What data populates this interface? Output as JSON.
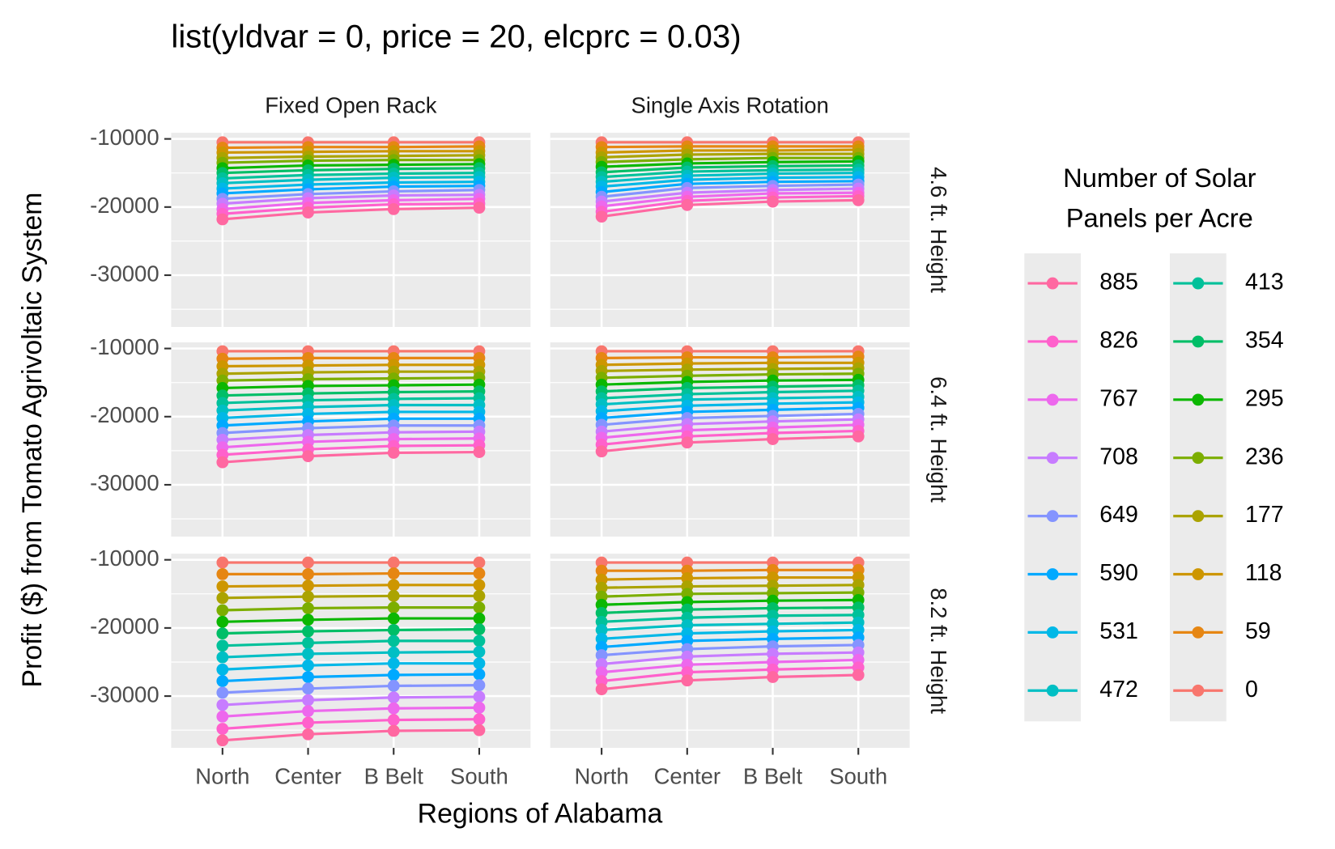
{
  "chart_data": {
    "type": "line",
    "title": "list(yldvar = 0, price = 20, elcprc = 0.03)",
    "x_label": "Regions of Alabama",
    "y_label": "Profit ($) from Tomato Agrivoltaic System",
    "legend_title": [
      "Number of Solar",
      "Panels per Acre"
    ],
    "legend_columns": 2,
    "categories": [
      "North",
      "Center",
      "B Belt",
      "South"
    ],
    "columns": [
      "Fixed Open Rack",
      "Single Axis Rotation"
    ],
    "ylim": [
      -37600,
      -9100
    ],
    "yticks": [
      -30000,
      -20000,
      -10000
    ],
    "minor_yticks": [
      -35000,
      -25000,
      -15000
    ],
    "grid": true,
    "series": [
      {
        "name": "885",
        "color": "#FF68A1"
      },
      {
        "name": "826",
        "color": "#FF61CC"
      },
      {
        "name": "767",
        "color": "#ED68ED"
      },
      {
        "name": "708",
        "color": "#C77CFF"
      },
      {
        "name": "649",
        "color": "#8494FF"
      },
      {
        "name": "590",
        "color": "#00A9FF"
      },
      {
        "name": "531",
        "color": "#00B8E7"
      },
      {
        "name": "472",
        "color": "#00BFC4"
      },
      {
        "name": "413",
        "color": "#00C19A"
      },
      {
        "name": "354",
        "color": "#00BE67"
      },
      {
        "name": "295",
        "color": "#0CB702"
      },
      {
        "name": "236",
        "color": "#7CAE00"
      },
      {
        "name": "177",
        "color": "#ABA300"
      },
      {
        "name": "118",
        "color": "#CD9600"
      },
      {
        "name": "59",
        "color": "#E68613"
      },
      {
        "name": "0",
        "color": "#F8766D"
      }
    ],
    "rows": [
      {
        "label": "4.6 ft. Height",
        "panels": [
          {
            "values": [
              [
                -21800,
                -20800,
                -20300,
                -20100
              ],
              [
                -21000,
                -20100,
                -19600,
                -19500
              ],
              [
                -20300,
                -19400,
                -19000,
                -18800
              ],
              [
                -19500,
                -18700,
                -18300,
                -18200
              ],
              [
                -18800,
                -18100,
                -17700,
                -17500
              ],
              [
                -18000,
                -17400,
                -17000,
                -16900
              ],
              [
                -17300,
                -16700,
                -16400,
                -16300
              ],
              [
                -16500,
                -16000,
                -15700,
                -15600
              ],
              [
                -15800,
                -15300,
                -15100,
                -15000
              ],
              [
                -15000,
                -14600,
                -14400,
                -14300
              ],
              [
                -14300,
                -13900,
                -13800,
                -13700
              ],
              [
                -13500,
                -13200,
                -13100,
                -13100
              ],
              [
                -12800,
                -12600,
                -12500,
                -12400
              ],
              [
                -12000,
                -11900,
                -11800,
                -11800
              ],
              [
                -11300,
                -11200,
                -11200,
                -11100
              ],
              [
                -10500,
                -10500,
                -10500,
                -10500
              ]
            ]
          },
          {
            "values": [
              [
                -21400,
                -19700,
                -19200,
                -19000
              ],
              [
                -20700,
                -19100,
                -18600,
                -18400
              ],
              [
                -19900,
                -18500,
                -18000,
                -17900
              ],
              [
                -19200,
                -17900,
                -17500,
                -17300
              ],
              [
                -18500,
                -17200,
                -16900,
                -16700
              ],
              [
                -17800,
                -16600,
                -16300,
                -16200
              ],
              [
                -17000,
                -16000,
                -15700,
                -15600
              ],
              [
                -16300,
                -15400,
                -15100,
                -15000
              ],
              [
                -15600,
                -14800,
                -14600,
                -14500
              ],
              [
                -14900,
                -14200,
                -14000,
                -13900
              ],
              [
                -14100,
                -13600,
                -13400,
                -13300
              ],
              [
                -13400,
                -13000,
                -12800,
                -12800
              ],
              [
                -12700,
                -12300,
                -12200,
                -12200
              ],
              [
                -12000,
                -11700,
                -11700,
                -11600
              ],
              [
                -11200,
                -11100,
                -11100,
                -11100
              ],
              [
                -10500,
                -10500,
                -10500,
                -10500
              ]
            ]
          }
        ]
      },
      {
        "label": "6.4 ft. Height",
        "panels": [
          {
            "values": [
              [
                -26700,
                -25800,
                -25300,
                -25200
              ],
              [
                -25600,
                -24800,
                -24300,
                -24200
              ],
              [
                -24500,
                -23700,
                -23300,
                -23200
              ],
              [
                -23400,
                -22700,
                -22300,
                -22200
              ],
              [
                -22400,
                -21700,
                -21300,
                -21300
              ],
              [
                -21300,
                -20700,
                -20300,
                -20300
              ],
              [
                -20200,
                -19600,
                -19300,
                -19300
              ],
              [
                -19100,
                -18600,
                -18300,
                -18300
              ],
              [
                -18000,
                -17600,
                -17400,
                -17300
              ],
              [
                -16900,
                -16600,
                -16400,
                -16300
              ],
              [
                -15800,
                -15500,
                -15400,
                -15300
              ],
              [
                -14700,
                -14500,
                -14400,
                -14300
              ],
              [
                -13700,
                -13500,
                -13400,
                -13400
              ],
              [
                -12600,
                -12500,
                -12400,
                -12400
              ],
              [
                -11500,
                -11400,
                -11400,
                -11400
              ],
              [
                -10400,
                -10400,
                -10400,
                -10400
              ]
            ]
          },
          {
            "values": [
              [
                -25100,
                -23800,
                -23300,
                -22900
              ],
              [
                -24100,
                -22900,
                -22400,
                -22100
              ],
              [
                -23100,
                -22000,
                -21600,
                -21200
              ],
              [
                -22200,
                -21100,
                -20700,
                -20400
              ],
              [
                -21200,
                -20200,
                -19900,
                -19600
              ],
              [
                -20200,
                -19300,
                -19000,
                -18700
              ],
              [
                -19200,
                -18400,
                -18100,
                -17900
              ],
              [
                -18200,
                -17500,
                -17300,
                -17100
              ],
              [
                -17300,
                -16700,
                -16400,
                -16200
              ],
              [
                -16300,
                -15800,
                -15600,
                -15400
              ],
              [
                -15300,
                -14900,
                -14700,
                -14600
              ],
              [
                -14300,
                -14000,
                -13800,
                -13700
              ],
              [
                -13300,
                -13100,
                -13000,
                -12900
              ],
              [
                -12400,
                -12200,
                -12100,
                -12100
              ],
              [
                -11400,
                -11300,
                -11300,
                -11200
              ],
              [
                -10400,
                -10400,
                -10400,
                -10400
              ]
            ]
          }
        ]
      },
      {
        "label": "8.2 ft. Height",
        "panels": [
          {
            "values": [
              [
                -36500,
                -35600,
                -35100,
                -35000
              ],
              [
                -34800,
                -33900,
                -33500,
                -33400
              ],
              [
                -33000,
                -32200,
                -31800,
                -31700
              ],
              [
                -31300,
                -30600,
                -30200,
                -30100
              ],
              [
                -29500,
                -28900,
                -28500,
                -28400
              ],
              [
                -27800,
                -27200,
                -26900,
                -26800
              ],
              [
                -26100,
                -25500,
                -25200,
                -25200
              ],
              [
                -24300,
                -23800,
                -23600,
                -23500
              ],
              [
                -22600,
                -22200,
                -21900,
                -21900
              ],
              [
                -20800,
                -20500,
                -20300,
                -20200
              ],
              [
                -19100,
                -18800,
                -18600,
                -18600
              ],
              [
                -17400,
                -17100,
                -17000,
                -17000
              ],
              [
                -15600,
                -15400,
                -15300,
                -15300
              ],
              [
                -13900,
                -13800,
                -13700,
                -13700
              ],
              [
                -12100,
                -12100,
                -12000,
                -12000
              ],
              [
                -10400,
                -10400,
                -10400,
                -10400
              ]
            ]
          },
          {
            "values": [
              [
                -29000,
                -27700,
                -27200,
                -26900
              ],
              [
                -27800,
                -26500,
                -26100,
                -25800
              ],
              [
                -26500,
                -25400,
                -25000,
                -24700
              ],
              [
                -25300,
                -24200,
                -23800,
                -23600
              ],
              [
                -24000,
                -23100,
                -22700,
                -22500
              ],
              [
                -22800,
                -21900,
                -21600,
                -21400
              ],
              [
                -21600,
                -20800,
                -20500,
                -20300
              ],
              [
                -20300,
                -19600,
                -19400,
                -19200
              ],
              [
                -19100,
                -18500,
                -18200,
                -18100
              ],
              [
                -17800,
                -17300,
                -17100,
                -17000
              ],
              [
                -16600,
                -16200,
                -16000,
                -15900
              ],
              [
                -15400,
                -15000,
                -14900,
                -14800
              ],
              [
                -14100,
                -13900,
                -13800,
                -13700
              ],
              [
                -12900,
                -12700,
                -12600,
                -12600
              ],
              [
                -11600,
                -11600,
                -11500,
                -11500
              ],
              [
                -10400,
                -10400,
                -10400,
                -10400
              ]
            ]
          }
        ]
      }
    ]
  }
}
